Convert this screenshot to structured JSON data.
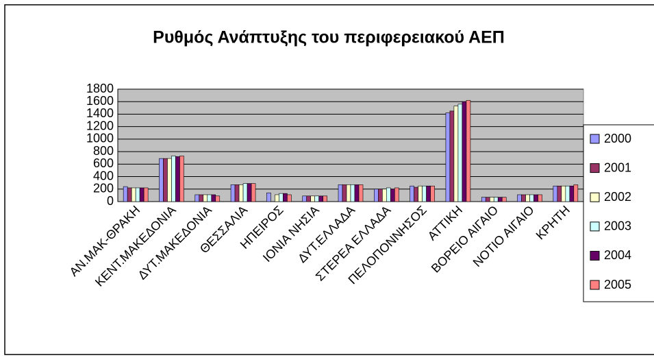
{
  "chart_data": {
    "type": "bar",
    "title": "Ρυθμός Ανάπτυξης του περιφερειακού ΑΕΠ",
    "categories": [
      "ΑΝ.ΜΑΚ-ΘΡΑΚΗ",
      "ΚΕΝΤ.ΜΑΚΕΔΟΝΙΑ",
      "ΔΥΤ.ΜΑΚΕΔΟΝΙΑ",
      "ΘΕΣΣΑΛΙΑ",
      "ΗΠΕΙΡΟΣ",
      "ΙΟΝΙΑ ΝΗΣΙΑ",
      "ΔΥΤ.ΕΛΛΑΔΑ",
      "ΣΤΕΡΕΑ ΕΛΛΑΔΑ",
      "ΠΕΛΟΠΟΝΝΗΣΟΣ",
      "ΑΤΤΙΚΗ",
      "ΒΟΡΕΙΟ ΑΙΓΑΙΟ",
      "ΝΟΤΙΟ ΑΙΓΑΙΟ",
      "ΚΡΗΤΗ"
    ],
    "series": [
      {
        "name": "2000",
        "color": "#9999ff",
        "values": [
          240,
          690,
          110,
          270,
          140,
          90,
          270,
          200,
          250,
          1420,
          70,
          110,
          250
        ]
      },
      {
        "name": "2001",
        "color": "#993366",
        "values": [
          220,
          690,
          110,
          270,
          null,
          90,
          270,
          200,
          230,
          1450,
          70,
          110,
          250
        ]
      },
      {
        "name": "2002",
        "color": "#ffffcc",
        "values": [
          220,
          690,
          110,
          270,
          110,
          90,
          270,
          200,
          250,
          1530,
          70,
          110,
          250
        ]
      },
      {
        "name": "2003",
        "color": "#ccffff",
        "values": [
          220,
          730,
          110,
          290,
          130,
          90,
          270,
          220,
          250,
          1560,
          70,
          110,
          250
        ]
      },
      {
        "name": "2004",
        "color": "#660066",
        "values": [
          220,
          720,
          110,
          290,
          130,
          90,
          270,
          200,
          250,
          1600,
          70,
          110,
          250
        ]
      },
      {
        "name": "2005",
        "color": "#ff8080",
        "values": [
          220,
          730,
          90,
          290,
          110,
          90,
          270,
          220,
          250,
          1620,
          70,
          110,
          270
        ]
      }
    ],
    "ylim": [
      0,
      1800
    ],
    "yticks": [
      0,
      200,
      400,
      600,
      800,
      1000,
      1200,
      1400,
      1600,
      1800
    ],
    "grid": true,
    "legend": "right"
  }
}
